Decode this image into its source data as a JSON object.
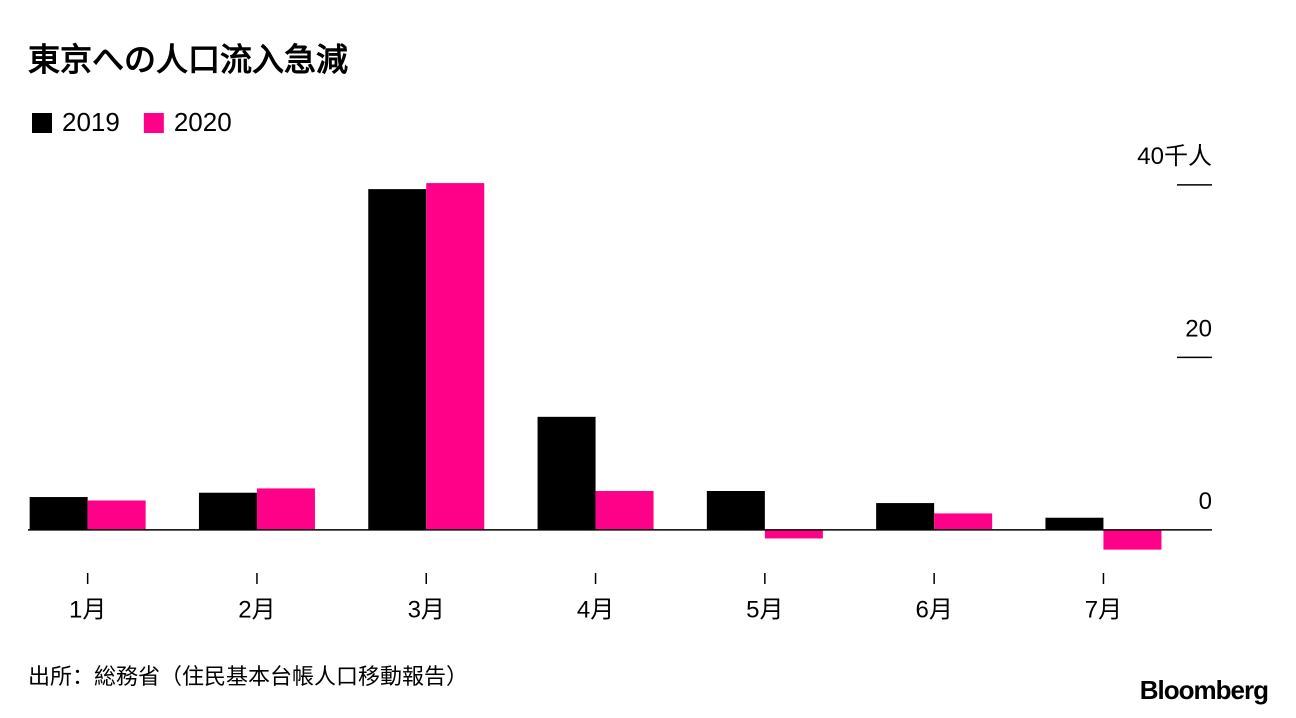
{
  "chart_data": {
    "type": "bar",
    "title": "東京への人口流入急減",
    "categories": [
      "1月",
      "2月",
      "3月",
      "4月",
      "5月",
      "6月",
      "7月"
    ],
    "series": [
      {
        "name": "2019",
        "color": "#000000",
        "values": [
          3.8,
          4.3,
          39.5,
          13.1,
          4.5,
          3.1,
          1.4
        ]
      },
      {
        "name": "2020",
        "color": "#ff0088",
        "values": [
          3.4,
          4.8,
          40.2,
          4.5,
          -1.0,
          1.9,
          -2.3
        ]
      }
    ],
    "ylim": [
      -3.5,
      42
    ],
    "yticks": [
      {
        "value": 40,
        "label": "40千人"
      },
      20,
      0
    ],
    "source": "出所：総務省（住民基本台帳人口移動報告）",
    "logo": "Bloomberg"
  }
}
